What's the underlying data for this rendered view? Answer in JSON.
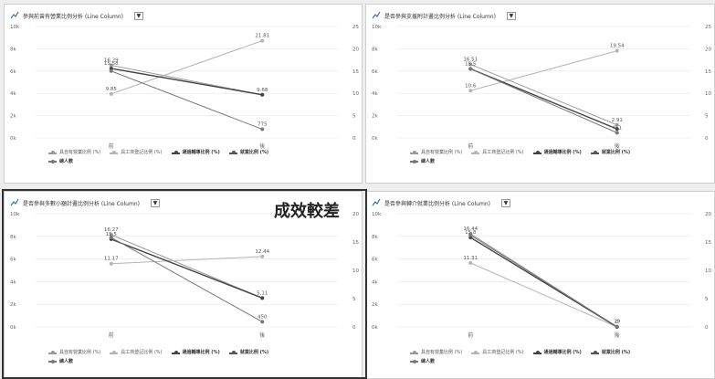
{
  "panels": [
    {
      "title": "參與前曾有營業比例分析 (Line Column)",
      "dropdown": "▼",
      "x_labels": [
        "前",
        "後"
      ],
      "left_ticks": [
        "10k",
        "8k",
        "6k",
        "4k",
        "2k",
        "0k"
      ],
      "right_ticks": [
        "25",
        "20",
        "15",
        "10",
        "5",
        "0"
      ]
    },
    {
      "title": "是否參與支援附計畫比例分析 (Line Column)",
      "dropdown": "▼",
      "x_labels": [
        "前",
        "後"
      ],
      "left_ticks": [
        "10k",
        "8k",
        "6k",
        "4k",
        "2k",
        "0k"
      ],
      "right_ticks": [
        "25",
        "20",
        "15",
        "10",
        "5",
        "0"
      ]
    },
    {
      "title": "是否參與多數小額計畫比例分析 (Line Column)",
      "dropdown": "▼",
      "x_labels": [
        "前",
        "後"
      ],
      "left_ticks": [
        "10k",
        "8k",
        "6k",
        "4k",
        "2k",
        "0k"
      ],
      "right_ticks": [
        "20",
        "15",
        "10",
        "5",
        "0"
      ]
    },
    {
      "title": "是否參與轉介就業比例分析 (Line Column)",
      "dropdown": "▼",
      "x_labels": [
        "前",
        "後"
      ],
      "left_ticks": [
        "10k",
        "8k",
        "6k",
        "4k",
        "2k",
        "0k"
      ],
      "right_ticks": [
        "20",
        "15",
        "10",
        "5",
        "0"
      ]
    }
  ],
  "legend": {
    "items": [
      "具自有營業比例 (%)",
      "具工商登記比例 (%)",
      "通過輔導比例 (%)",
      "就業比例 (%)",
      "總人數"
    ]
  },
  "callout": "成效較差",
  "colors": {
    "series_a": "#999999",
    "series_b": "#b5b5b5",
    "series_c": "#444444",
    "series_d": "#555555",
    "series_e": "#777777"
  },
  "chart_data": [
    {
      "type": "line",
      "categories": [
        "前",
        "後"
      ],
      "y_left_lim": [
        0,
        10000
      ],
      "y_right_lim": [
        0,
        25
      ],
      "series": [
        {
          "axis": "right",
          "values": [
            16.29,
            9.68
          ]
        },
        {
          "axis": "right",
          "values": [
            9.85,
            21.81
          ]
        },
        {
          "axis": "right",
          "values": [
            15.58,
            9.68
          ]
        },
        {
          "axis": "left",
          "values": [
            6000,
            775
          ]
        }
      ],
      "data_labels": [
        "16.29",
        "15.58",
        "9.85",
        "21.81",
        "9.68",
        "775"
      ]
    },
    {
      "type": "line",
      "categories": [
        "前",
        "後"
      ],
      "y_left_lim": [
        0,
        10000
      ],
      "y_right_lim": [
        0,
        25
      ],
      "series": [
        {
          "axis": "right",
          "values": [
            16.51,
            2.91
          ]
        },
        {
          "axis": "right",
          "values": [
            10.6,
            19.54
          ]
        },
        {
          "axis": "right",
          "values": [
            15.5,
            2.0
          ]
        },
        {
          "axis": "left",
          "values": [
            6200,
            461
          ]
        }
      ],
      "data_labels": [
        "16.51",
        "15.5",
        "10.6",
        "19.54",
        "2.91",
        "461"
      ]
    },
    {
      "type": "line",
      "categories": [
        "前",
        "後"
      ],
      "y_left_lim": [
        0,
        10000
      ],
      "y_right_lim": [
        0,
        20
      ],
      "series": [
        {
          "axis": "right",
          "values": [
            16.27,
            5.11
          ]
        },
        {
          "axis": "right",
          "values": [
            11.17,
            12.44
          ]
        },
        {
          "axis": "right",
          "values": [
            15.5,
            5.11
          ]
        },
        {
          "axis": "left",
          "values": [
            7900,
            450
          ]
        }
      ],
      "data_labels": [
        "16.27",
        "15.5",
        "11.17",
        "12.44",
        "5.11",
        "450"
      ]
    },
    {
      "type": "line",
      "categories": [
        "前",
        "後"
      ],
      "y_left_lim": [
        0,
        10000
      ],
      "y_right_lim": [
        0,
        20
      ],
      "series": [
        {
          "axis": "right",
          "values": [
            16.44,
            0
          ]
        },
        {
          "axis": "right",
          "values": [
            11.31,
            0
          ]
        },
        {
          "axis": "right",
          "values": [
            15.8,
            0
          ]
        },
        {
          "axis": "left",
          "values": [
            8100,
            29
          ]
        }
      ],
      "data_labels": [
        "16.44",
        "15.8",
        "11.31",
        "29",
        "0"
      ]
    }
  ]
}
